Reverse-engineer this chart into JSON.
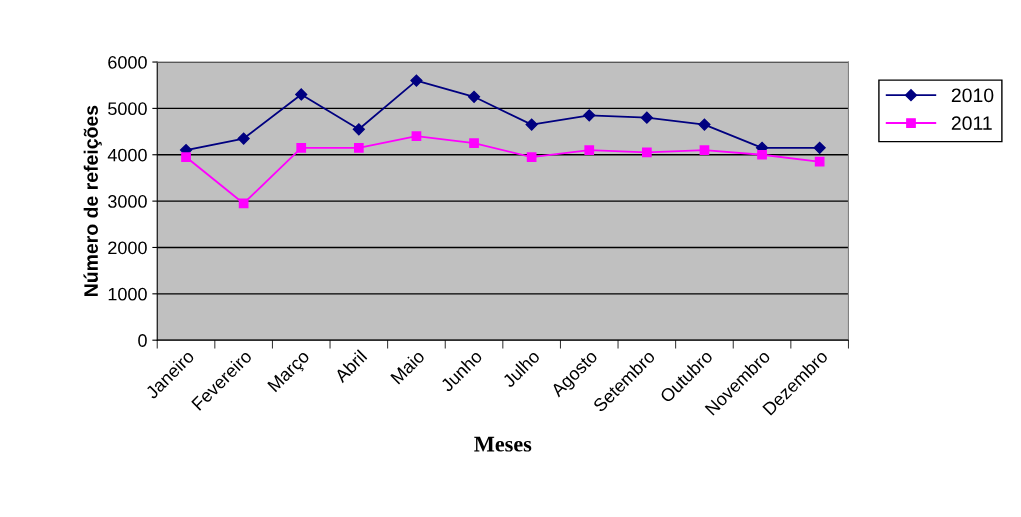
{
  "chart_data": {
    "type": "line",
    "xlabel": "Meses",
    "ylabel": "Número de refeições",
    "categories": [
      "Janeiro",
      "Fevereiro",
      "Março",
      "Abril",
      "Maio",
      "Junho",
      "Julho",
      "Agosto",
      "Setembro",
      "Outubro",
      "Novembro",
      "Dezembro"
    ],
    "series": [
      {
        "name": "2010",
        "color": "#000080",
        "marker": "diamond",
        "values": [
          4100,
          4350,
          5300,
          4550,
          5600,
          5250,
          4650,
          4850,
          4800,
          4650,
          4150,
          4150
        ]
      },
      {
        "name": "2011",
        "color": "#ff00ff",
        "marker": "square",
        "values": [
          3950,
          2950,
          4150,
          4150,
          4400,
          4250,
          3950,
          4100,
          4050,
          4100,
          4000,
          3850
        ]
      }
    ],
    "ylim": [
      0,
      6000
    ],
    "yticks": [
      0,
      1000,
      2000,
      3000,
      4000,
      5000,
      6000
    ],
    "grid": "y",
    "legend": "right",
    "line_style": "solid"
  }
}
